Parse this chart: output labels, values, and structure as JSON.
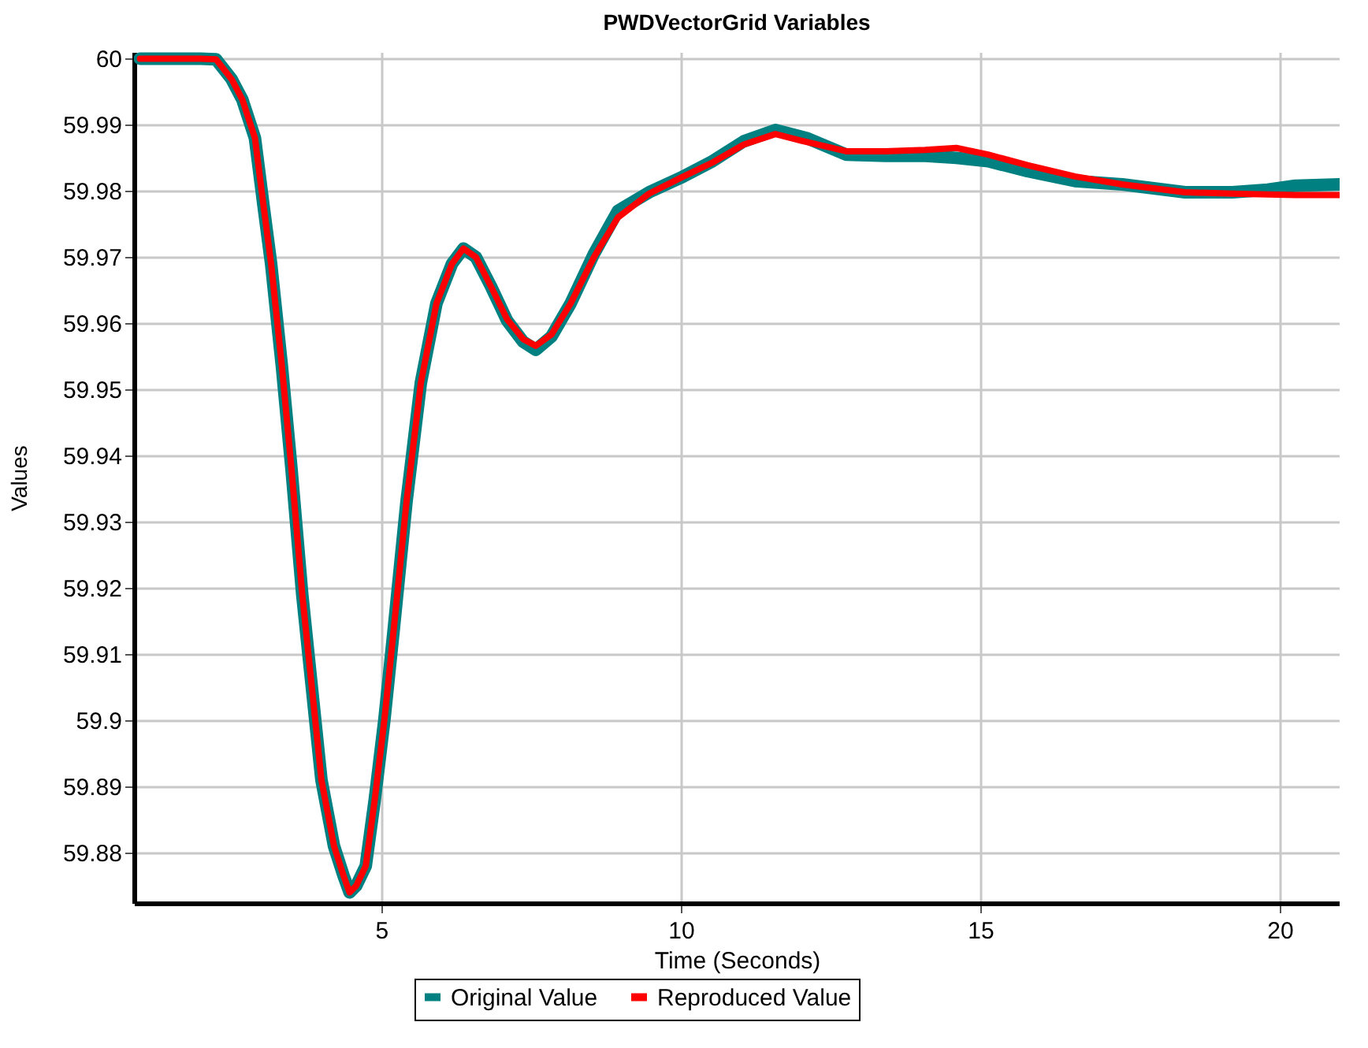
{
  "chart_data": {
    "type": "line",
    "title": "PWDVectorGrid Variables",
    "xlabel": "Time (Seconds)",
    "ylabel": "Values",
    "xlim": [
      0.87,
      21
    ],
    "xticks": [
      5,
      10,
      15,
      20
    ],
    "ylim": [
      59.8724,
      60.001
    ],
    "yticks": [
      59.88,
      59.89,
      59.9,
      59.91,
      59.92,
      59.93,
      59.94,
      59.95,
      59.96,
      59.97,
      59.98,
      59.99,
      60
    ],
    "grid": true,
    "legend": "bottom",
    "line_style": "solid",
    "series": [
      {
        "name": "Original Value",
        "color": "#008080",
        "x": [
          0.97,
          1.97,
          2.24,
          2.5,
          2.68,
          2.89,
          3.03,
          3.16,
          3.34,
          3.5,
          3.68,
          3.84,
          4.0,
          4.21,
          4.37,
          4.47,
          4.58,
          4.74,
          4.89,
          5.05,
          5.21,
          5.42,
          5.66,
          5.92,
          6.18,
          6.37,
          6.58,
          6.84,
          7.1,
          7.37,
          7.58,
          7.84,
          8.16,
          8.55,
          8.95,
          9.47,
          10.0,
          10.53,
          11.05,
          11.58,
          12.1,
          12.76,
          13.42,
          14.08,
          14.6,
          15.13,
          15.79,
          16.58,
          17.37,
          18.42,
          19.21,
          19.8,
          20.26,
          21
        ],
        "values": [
          60,
          60,
          59.9999,
          59.9969,
          59.9938,
          59.988,
          59.978,
          59.969,
          59.9535,
          59.938,
          59.919,
          59.905,
          59.891,
          59.881,
          59.8765,
          59.874,
          59.875,
          59.878,
          59.888,
          59.9,
          59.914,
          59.933,
          59.951,
          59.963,
          59.969,
          59.9713,
          59.97,
          59.9654,
          59.9604,
          59.9572,
          59.956,
          59.958,
          59.963,
          59.9705,
          59.977,
          59.9798,
          59.982,
          59.9845,
          59.9875,
          59.9892,
          59.988,
          59.9855,
          59.9853,
          59.9853,
          59.985,
          59.9845,
          59.983,
          59.9815,
          59.981,
          59.9798,
          59.9798,
          59.9802,
          59.9808,
          59.981
        ]
      },
      {
        "name": "Reproduced Value",
        "color": "#ff0000",
        "x": [
          0.97,
          1.97,
          2.24,
          2.5,
          2.68,
          2.89,
          3.03,
          3.16,
          3.34,
          3.5,
          3.68,
          3.84,
          4.0,
          4.21,
          4.37,
          4.47,
          4.58,
          4.74,
          4.89,
          5.05,
          5.21,
          5.42,
          5.66,
          5.92,
          6.18,
          6.37,
          6.58,
          6.84,
          7.1,
          7.37,
          7.58,
          7.84,
          8.16,
          8.55,
          8.95,
          9.47,
          10.0,
          10.53,
          11.05,
          11.58,
          12.1,
          12.76,
          13.42,
          14.08,
          14.6,
          15.13,
          15.79,
          16.58,
          17.37,
          18.42,
          19.21,
          20.26,
          21
        ],
        "values": [
          60,
          60,
          59.9999,
          59.9969,
          59.9938,
          59.988,
          59.978,
          59.969,
          59.9535,
          59.938,
          59.919,
          59.905,
          59.891,
          59.881,
          59.8765,
          59.874,
          59.875,
          59.878,
          59.888,
          59.9,
          59.914,
          59.933,
          59.951,
          59.963,
          59.969,
          59.9713,
          59.97,
          59.9654,
          59.9606,
          59.9576,
          59.9566,
          59.9583,
          59.963,
          59.97,
          59.976,
          59.9796,
          59.982,
          59.9843,
          59.987,
          59.9886,
          59.9874,
          59.986,
          59.986,
          59.9862,
          59.9865,
          59.9855,
          59.9839,
          59.9822,
          59.981,
          59.9798,
          59.9796,
          59.9794,
          59.9794
        ]
      }
    ]
  }
}
